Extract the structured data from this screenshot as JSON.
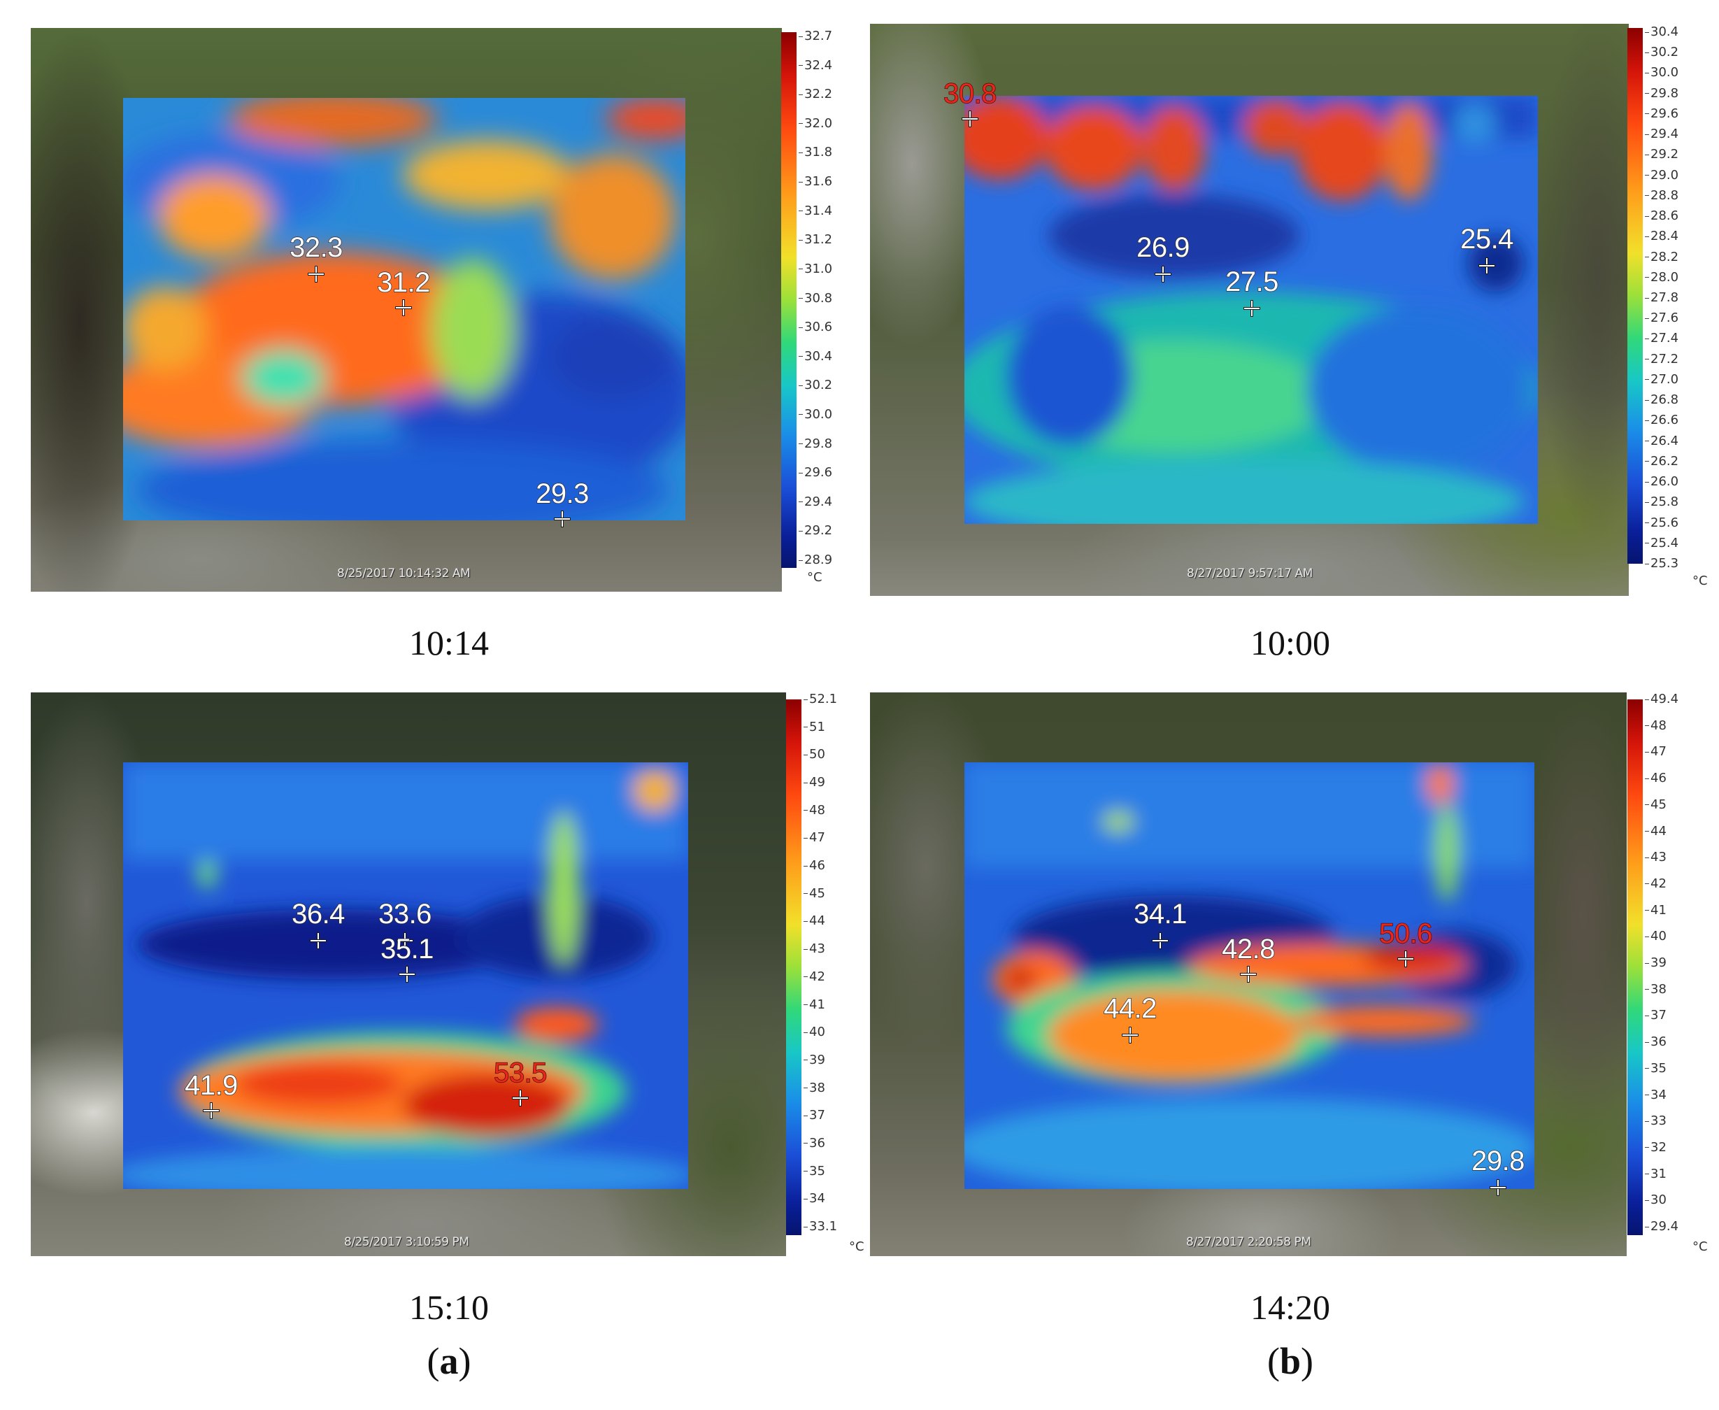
{
  "figure": {
    "sublabels": [
      {
        "open": "(",
        "letter": "a",
        "close": ")"
      },
      {
        "open": "(",
        "letter": "b",
        "close": ")"
      }
    ]
  },
  "panels": [
    {
      "id": "p1",
      "time": "10:14",
      "timestamp": "8/25/2017 10:14:32 AM",
      "unit": "°C",
      "scale_range": [
        28.9,
        32.7
      ],
      "ticks": [
        "32.7",
        "32.4",
        "32.2",
        "32.0",
        "31.8",
        "31.6",
        "31.4",
        "31.2",
        "31.0",
        "30.8",
        "30.6",
        "30.4",
        "30.2",
        "30.0",
        "29.8",
        "29.6",
        "29.4",
        "29.2",
        "28.9"
      ],
      "markers": [
        {
          "value": "32.3",
          "hot": false
        },
        {
          "value": "31.2",
          "hot": false
        },
        {
          "value": "29.3",
          "hot": false
        }
      ],
      "palette": "warm"
    },
    {
      "id": "p2",
      "time": "10:00",
      "timestamp": "8/27/2017 9:57:17 AM",
      "unit": "°C",
      "scale_range": [
        25.3,
        30.4
      ],
      "ticks": [
        "30.4",
        "30.2",
        "30.0",
        "29.8",
        "29.6",
        "29.4",
        "29.2",
        "29.0",
        "28.8",
        "28.6",
        "28.4",
        "28.2",
        "28.0",
        "27.8",
        "27.6",
        "27.4",
        "27.2",
        "27.0",
        "26.8",
        "26.6",
        "26.4",
        "26.2",
        "26.0",
        "25.8",
        "25.6",
        "25.4",
        "25.3"
      ],
      "markers": [
        {
          "value": "30.8",
          "hot": true
        },
        {
          "value": "26.9",
          "hot": false
        },
        {
          "value": "27.5",
          "hot": false
        },
        {
          "value": "25.4",
          "hot": false
        }
      ],
      "palette": "cool"
    },
    {
      "id": "p3",
      "time": "15:10",
      "timestamp": "8/25/2017 3:10:59 PM",
      "unit": "°C",
      "scale_range": [
        33.1,
        52.1
      ],
      "ticks": [
        "52.1",
        "51",
        "50",
        "49",
        "48",
        "47",
        "46",
        "45",
        "44",
        "43",
        "42",
        "41",
        "40",
        "39",
        "38",
        "37",
        "36",
        "35",
        "34",
        "33.1"
      ],
      "markers": [
        {
          "value": "36.4",
          "hot": false
        },
        {
          "value": "33.6",
          "hot": false
        },
        {
          "value": "35.1",
          "hot": false
        },
        {
          "value": "41.9",
          "hot": false
        },
        {
          "value": "53.5",
          "hot": true
        }
      ],
      "palette": "cool"
    },
    {
      "id": "p4",
      "time": "14:20",
      "timestamp": "8/27/2017 2:20:58 PM",
      "unit": "°C",
      "scale_range": [
        29.4,
        49.4
      ],
      "ticks": [
        "49.4",
        "48",
        "47",
        "46",
        "45",
        "44",
        "43",
        "42",
        "41",
        "40",
        "39",
        "38",
        "37",
        "36",
        "35",
        "34",
        "33",
        "32",
        "31",
        "30",
        "29.4"
      ],
      "markers": [
        {
          "value": "34.1",
          "hot": false
        },
        {
          "value": "42.8",
          "hot": false
        },
        {
          "value": "50.6",
          "hot": true
        },
        {
          "value": "44.2",
          "hot": false
        },
        {
          "value": "29.8",
          "hot": false
        }
      ],
      "palette": "cool"
    }
  ]
}
